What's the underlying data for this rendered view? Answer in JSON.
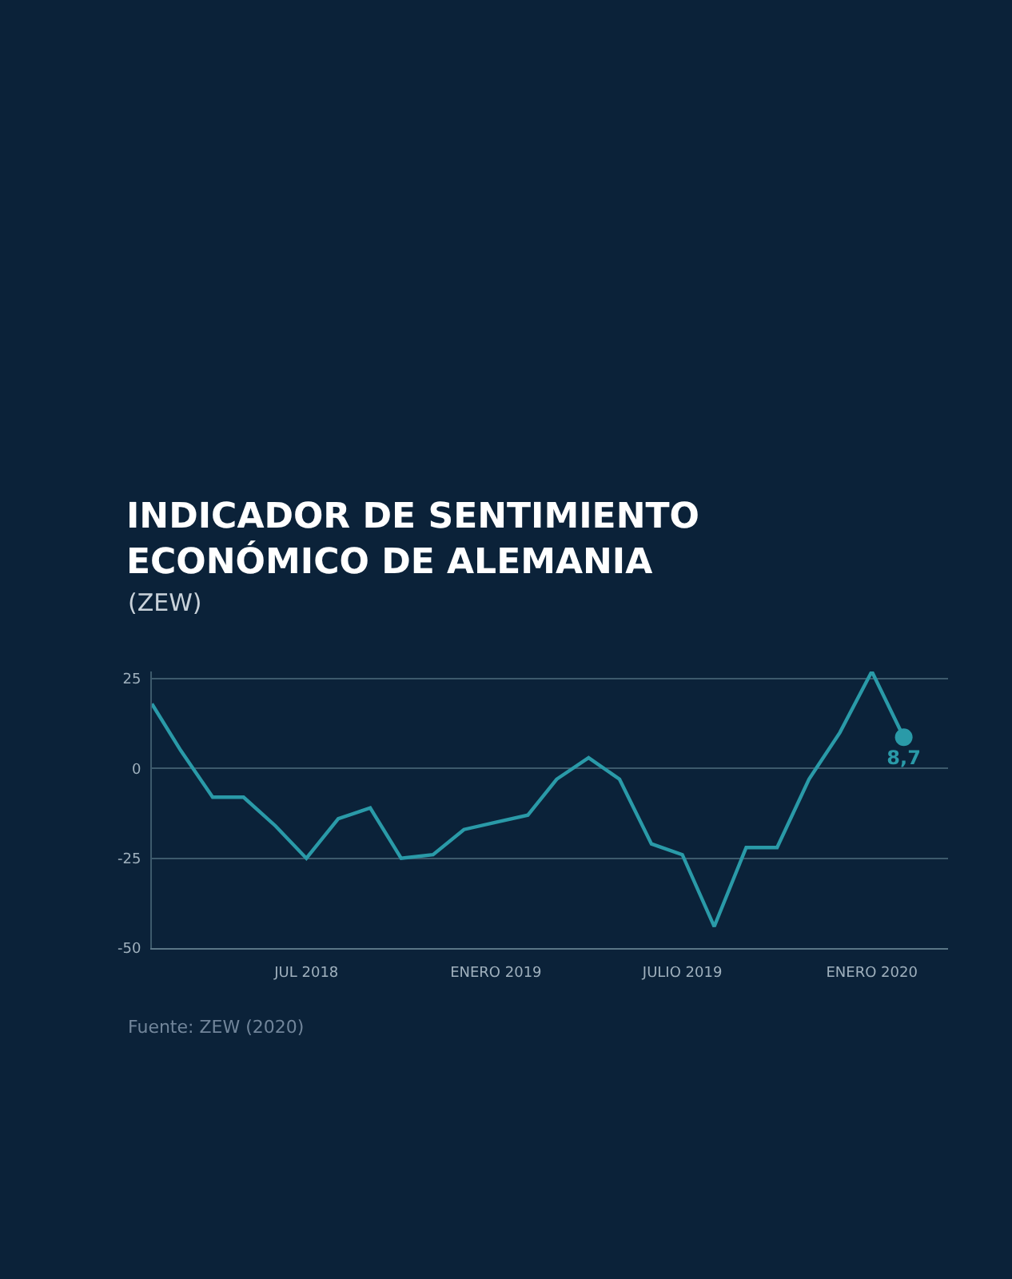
{
  "chart_data": {
    "type": "line",
    "title": "INDICADOR DE SENTIMIENTO\nECONÓMICO DE ALEMANIA",
    "subtitle": "(ZEW)",
    "annotations": [
      "Fuente: ZEW (2020)"
    ],
    "x": [
      "2018-02",
      "2018-03",
      "2018-04",
      "2018-05",
      "2018-06",
      "2018-07",
      "2018-08",
      "2018-09",
      "2018-10",
      "2018-11",
      "2018-12",
      "2019-01",
      "2019-02",
      "2019-03",
      "2019-04",
      "2019-05",
      "2019-06",
      "2019-07",
      "2019-08",
      "2019-09",
      "2019-10",
      "2019-11",
      "2019-12",
      "2020-01",
      "2020-02"
    ],
    "series": [
      {
        "color": "#2a9aa8",
        "values": [
          18,
          5,
          -8,
          -8,
          -16,
          -25,
          -14,
          -11,
          -25,
          -24,
          -17,
          -15,
          -13,
          -3,
          3,
          -3,
          -21,
          -24,
          -44,
          -22,
          -22,
          -3,
          10,
          27,
          8.7
        ]
      },
      {
        "type": "scatter",
        "marker": "circle",
        "color": "#2a9aa8",
        "x": [
          "2020-02"
        ],
        "values": [
          8.7
        ],
        "value_labels": [
          "8,7"
        ]
      }
    ],
    "xlim": [
      "2018-02",
      "2020-03-15"
    ],
    "ylim": [
      -50,
      27
    ],
    "xticks": [
      {
        "value": "2018-07",
        "label": "JUL 2018"
      },
      {
        "value": "2019-01",
        "label": "ENERO 2019"
      },
      {
        "value": "2019-07",
        "label": "JULIO 2019"
      },
      {
        "value": "2020-01",
        "label": "ENERO 2020"
      }
    ],
    "yticks": [
      -50,
      -25,
      0,
      25
    ],
    "grid": "y",
    "marker": "none",
    "line_style": "solid"
  }
}
